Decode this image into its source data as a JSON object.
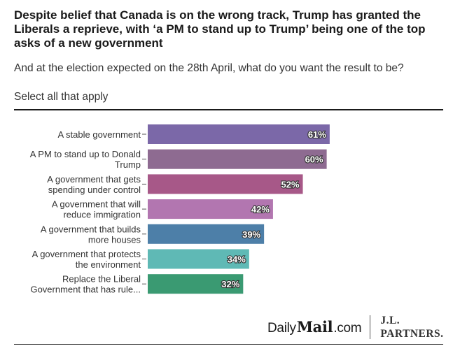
{
  "header": {
    "title": "Despite belief that Canada is on the wrong track, Trump has granted the Liberals a reprieve, with ‘a PM to stand up to Trump’ being one of the top asks of a new government",
    "subtitle": "And at the election expected on the 28th April, what do you want the result to be?",
    "instruction": "Select all that apply"
  },
  "footer": {
    "dailymail_daily": "Daily",
    "dailymail_mail": "Mail",
    "dailymail_com": ".com",
    "jl_line1": "J.L.",
    "jl_line2": "PARTNERS."
  },
  "chart_data": {
    "type": "bar",
    "orientation": "horizontal",
    "categories": [
      [
        "A stable government"
      ],
      [
        "A PM to stand up to Donald",
        "Trump"
      ],
      [
        "A government that gets",
        "spending under control"
      ],
      [
        "A government that will",
        "reduce immigration"
      ],
      [
        "A government that builds",
        "more houses"
      ],
      [
        "A government that protects",
        "the environment"
      ],
      [
        "Replace the Liberal",
        "Government that has rule..."
      ]
    ],
    "values": [
      61,
      60,
      52,
      42,
      39,
      34,
      32
    ],
    "value_labels": [
      "61%",
      "60%",
      "52%",
      "42%",
      "39%",
      "34%",
      "32%"
    ],
    "colors": [
      "#7b68a8",
      "#8e6b91",
      "#a75888",
      "#b276b0",
      "#4d7fa8",
      "#5fb9b5",
      "#3a9a72"
    ],
    "xlim": [
      0,
      100
    ],
    "grid": false,
    "legend": "none"
  }
}
